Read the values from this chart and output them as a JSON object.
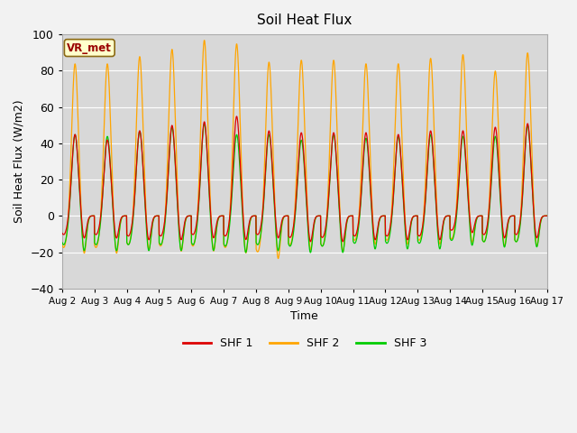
{
  "title": "Soil Heat Flux",
  "xlabel": "Time",
  "ylabel": "Soil Heat Flux (W/m2)",
  "ylim": [
    -40,
    100
  ],
  "yticks": [
    -40,
    -20,
    0,
    20,
    40,
    60,
    80,
    100
  ],
  "xtick_labels": [
    "Aug 2",
    "Aug 3",
    "Aug 4",
    "Aug 5",
    "Aug 6",
    "Aug 7",
    "Aug 8",
    "Aug 9",
    "Aug 10",
    "Aug 11",
    "Aug 12",
    "Aug 13",
    "Aug 14",
    "Aug 15",
    "Aug 16",
    "Aug 17"
  ],
  "colors": {
    "SHF 1": "#dd0000",
    "SHF 2": "#ffa500",
    "SHF 3": "#00cc00"
  },
  "legend_label": "VR_met",
  "bg_color": "#d8d8d8",
  "grid_color": "#ffffff",
  "n_days": 15,
  "shf1_peaks": [
    45,
    42,
    47,
    50,
    52,
    55,
    47,
    46,
    46,
    46,
    45,
    47,
    47,
    49,
    51
  ],
  "shf2_peaks": [
    84,
    84,
    88,
    92,
    97,
    95,
    85,
    86,
    86,
    84,
    84,
    87,
    89,
    80,
    90
  ],
  "shf3_peaks": [
    45,
    44,
    47,
    49,
    51,
    45,
    45,
    42,
    45,
    43,
    44,
    45,
    44,
    44,
    50
  ],
  "shf1_troughs": [
    -13,
    -13,
    -14,
    -14,
    -13,
    -14,
    -13,
    -15,
    -15,
    -14,
    -14,
    -14,
    -10,
    -13,
    -13
  ],
  "shf2_troughs": [
    -22,
    -22,
    -20,
    -21,
    -21,
    -22,
    -25,
    -20,
    -21,
    -17,
    -17,
    -17,
    -16,
    -18,
    -18
  ],
  "shf3_troughs": [
    -20,
    -20,
    -20,
    -20,
    -20,
    -21,
    -20,
    -21,
    -21,
    -19,
    -19,
    -19,
    -17,
    -18,
    -18
  ]
}
